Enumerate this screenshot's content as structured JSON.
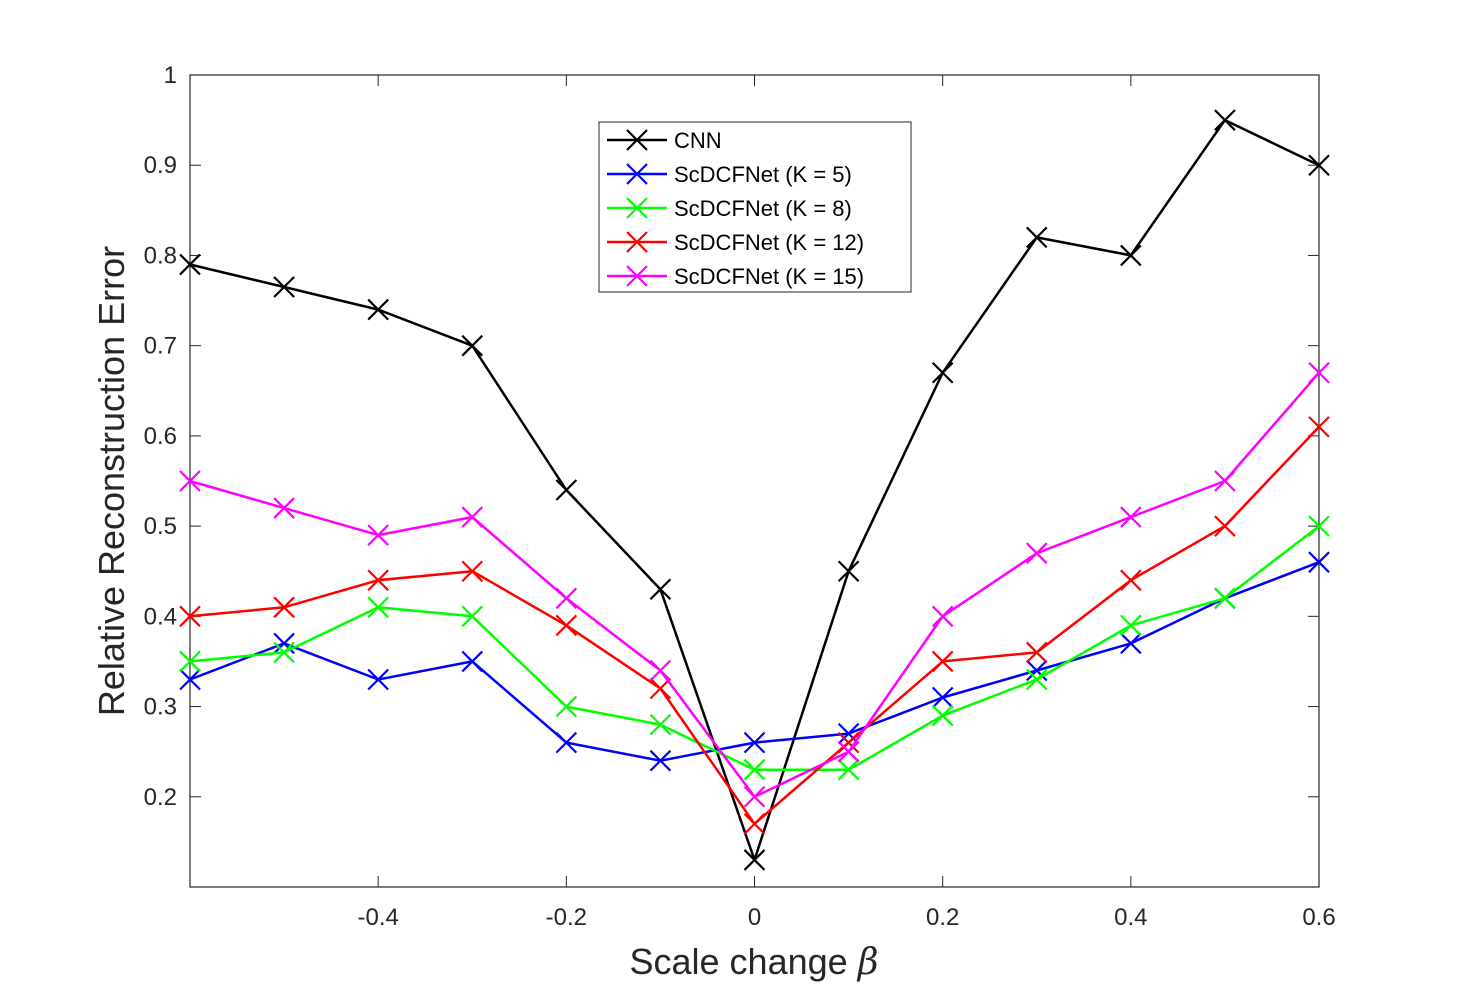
{
  "chart_data": {
    "type": "line",
    "title": "",
    "xlabel": "Scale change",
    "xlabel_symbol": "β",
    "ylabel": "Relative Reconstruction Error",
    "xlim": [
      -0.6,
      0.6
    ],
    "ylim": [
      0.1,
      1.0
    ],
    "xticks": [
      -0.4,
      -0.2,
      0,
      0.2,
      0.4,
      0.6
    ],
    "xtick_labels": [
      "-0.4",
      "-0.2",
      "0",
      "0.2",
      "0.4",
      "0.6"
    ],
    "yticks": [
      0.2,
      0.3,
      0.4,
      0.5,
      0.6,
      0.7,
      0.8,
      0.9,
      1.0
    ],
    "ytick_labels": [
      "0.2",
      "0.3",
      "0.4",
      "0.5",
      "0.6",
      "0.7",
      "0.8",
      "0.9",
      "1"
    ],
    "grid": false,
    "legend_position": "top-center",
    "x": [
      -0.6,
      -0.5,
      -0.4,
      -0.3,
      -0.2,
      -0.1,
      0,
      0.1,
      0.2,
      0.3,
      0.4,
      0.5,
      0.6
    ],
    "series": [
      {
        "name": "CNN",
        "color": "#000000",
        "values": [
          0.79,
          0.765,
          0.74,
          0.7,
          0.54,
          0.43,
          0.13,
          0.45,
          0.67,
          0.82,
          0.8,
          0.95,
          0.9
        ]
      },
      {
        "name": "ScDCFNet (K = 5)",
        "color": "#0000ff",
        "values": [
          0.33,
          0.37,
          0.33,
          0.35,
          0.26,
          0.24,
          0.26,
          0.27,
          0.31,
          0.34,
          0.37,
          0.42,
          0.46
        ]
      },
      {
        "name": "ScDCFNet (K = 8)",
        "color": "#00ff00",
        "values": [
          0.35,
          0.36,
          0.41,
          0.4,
          0.3,
          0.28,
          0.23,
          0.23,
          0.29,
          0.33,
          0.39,
          0.42,
          0.5
        ]
      },
      {
        "name": "ScDCFNet (K = 12)",
        "color": "#ff0000",
        "values": [
          0.4,
          0.41,
          0.44,
          0.45,
          0.39,
          0.32,
          0.17,
          0.26,
          0.35,
          0.36,
          0.44,
          0.5,
          0.61
        ]
      },
      {
        "name": "ScDCFNet (K = 15)",
        "color": "#ff00ff",
        "values": [
          0.55,
          0.52,
          0.49,
          0.51,
          0.42,
          0.34,
          0.2,
          0.25,
          0.4,
          0.47,
          0.51,
          0.55,
          0.67
        ]
      }
    ]
  }
}
